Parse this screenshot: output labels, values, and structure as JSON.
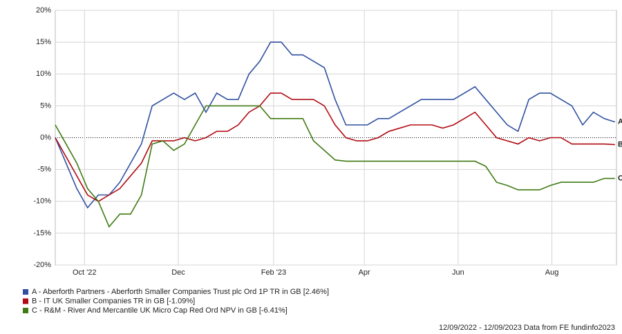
{
  "chart_data": {
    "type": "line",
    "x": [
      0,
      7,
      14,
      21,
      28,
      35,
      42,
      49,
      56,
      63,
      70,
      77,
      84,
      91,
      98,
      105,
      112,
      119,
      126,
      133,
      140,
      147,
      154,
      161,
      168,
      175,
      182,
      189,
      196,
      203,
      210,
      217,
      224,
      231,
      238,
      245,
      252,
      259,
      266,
      273,
      280,
      287,
      294,
      301,
      308,
      315,
      322,
      329,
      336,
      343,
      350,
      357,
      364
    ],
    "xlim": [
      0,
      365
    ],
    "xticks": [
      {
        "value": 19,
        "label": "Oct '22"
      },
      {
        "value": 80,
        "label": "Dec"
      },
      {
        "value": 142,
        "label": "Feb '23"
      },
      {
        "value": 201,
        "label": "Apr"
      },
      {
        "value": 262,
        "label": "Jun"
      },
      {
        "value": 323,
        "label": "Aug"
      }
    ],
    "ylim": [
      -20,
      20
    ],
    "yticks": [
      {
        "value": -20,
        "label": "-20%"
      },
      {
        "value": -15,
        "label": "-15%"
      },
      {
        "value": -10,
        "label": "-10%"
      },
      {
        "value": -5,
        "label": "-5%"
      },
      {
        "value": 0,
        "label": "0%"
      },
      {
        "value": 5,
        "label": "5%"
      },
      {
        "value": 10,
        "label": "10%"
      },
      {
        "value": 15,
        "label": "15%"
      },
      {
        "value": 20,
        "label": "20%"
      }
    ],
    "grid": true,
    "series": [
      {
        "name": "A - Aberforth Partners - Aberforth Smaller Companies Trust plc Ord 1P TR in GB [2.46%]",
        "end_label": "A",
        "color": "#2f4fa0",
        "values": [
          0,
          -4,
          -8,
          -11,
          -9,
          -9,
          -7,
          -4,
          -1,
          5,
          6,
          7,
          6,
          7,
          4,
          7,
          6,
          6,
          10,
          12,
          15,
          15,
          13,
          13,
          12,
          11,
          6,
          2,
          2,
          2,
          3,
          3,
          4,
          5,
          6,
          6,
          6,
          6,
          7,
          8,
          6,
          4,
          2,
          1,
          6,
          7,
          7,
          6,
          5,
          2,
          4,
          3,
          2.46
        ]
      },
      {
        "name": "B - IT UK Smaller Companies TR in GB [-1.09%]",
        "end_label": "B",
        "color": "#b00a12",
        "values": [
          0,
          -3,
          -6,
          -9,
          -10,
          -9,
          -8,
          -6,
          -4,
          -0.5,
          -0.5,
          -0.5,
          0,
          -0.5,
          0,
          1,
          1,
          2,
          4,
          5,
          7,
          7,
          6,
          6,
          6,
          5,
          2,
          0,
          -0.5,
          -0.5,
          0,
          1,
          1.5,
          2,
          2,
          2,
          1.5,
          2,
          3,
          4,
          2,
          0,
          -0.5,
          -1,
          0,
          -0.5,
          0,
          0,
          -1,
          -1,
          -1,
          -1,
          -1.09
        ]
      },
      {
        "name": "C - R&M - River And Mercantile UK Micro Cap Red Ord NPV in GB [-6.41%]",
        "end_label": "C",
        "color": "#3f7a12",
        "values": [
          2,
          -1,
          -4,
          -8,
          -10,
          -14,
          -12,
          -12,
          -9,
          -1,
          -0.5,
          -2,
          -1,
          2,
          5,
          5,
          5,
          5,
          5,
          5,
          3,
          3,
          3,
          3,
          -0.5,
          -2,
          -3.5,
          -3.7,
          -3.7,
          -3.7,
          -3.7,
          -3.7,
          -3.7,
          -3.7,
          -3.7,
          -3.7,
          -3.7,
          -3.7,
          -3.7,
          -3.7,
          -4.5,
          -7,
          -7.5,
          -8.2,
          -8.2,
          -8.2,
          -7.5,
          -7,
          -7,
          -7,
          -7,
          -6.4,
          -6.41
        ]
      }
    ],
    "footer": "12/09/2022 - 12/09/2023 Data from FE fundinfo2023"
  }
}
